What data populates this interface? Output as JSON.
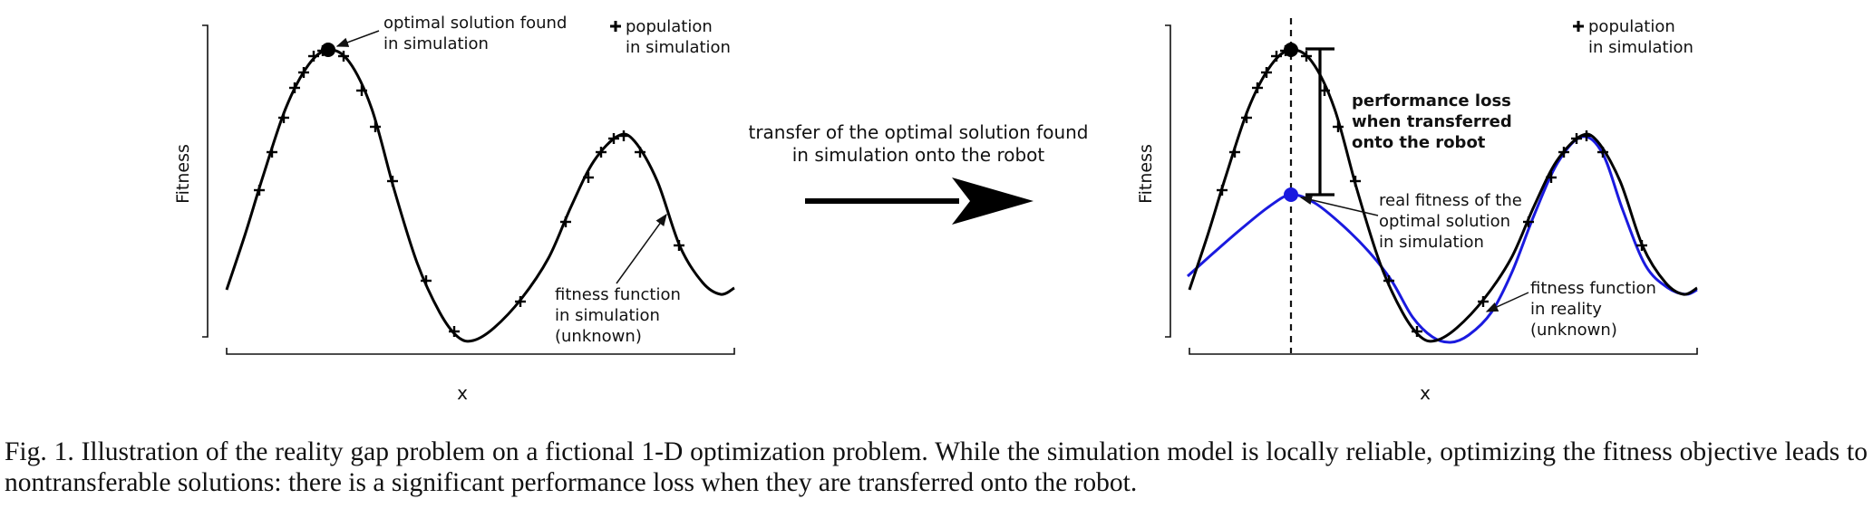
{
  "figure": {
    "left_panel": {
      "ylabel": "Fitness",
      "xlabel": "x",
      "annotation_optimal": [
        "optimal solution found",
        "in simulation"
      ],
      "legend": [
        "population",
        "in simulation"
      ],
      "annotation_curve": [
        "fitness function",
        "in simulation",
        "(unknown)"
      ]
    },
    "transfer_label": [
      "transfer of the optimal solution found",
      "in simulation onto the robot"
    ],
    "right_panel": {
      "ylabel": "Fitness",
      "xlabel": "x",
      "legend": [
        "population",
        "in simulation"
      ],
      "annotation_loss": [
        "performance loss",
        "when transferred",
        "onto the robot"
      ],
      "annotation_real": [
        "real fitness of the",
        "optimal solution",
        "in simulation"
      ],
      "annotation_reality": [
        "fitness function",
        "in reality",
        "(unknown)"
      ]
    },
    "colors": {
      "simulation_curve": "#000000",
      "reality_curve": "#1a1adf",
      "text": "#111111"
    },
    "icons": [
      "plus-marker-icon",
      "arrow-right-icon"
    ]
  },
  "caption": {
    "label": "Fig. 1.",
    "text": "Illustration of the reality gap problem on a fictional 1-D optimization problem. While the simulation model is locally reliable, optimizing the fitness objective leads to nontransferable solutions: there is a significant performance loss when they are transferred onto the robot."
  }
}
